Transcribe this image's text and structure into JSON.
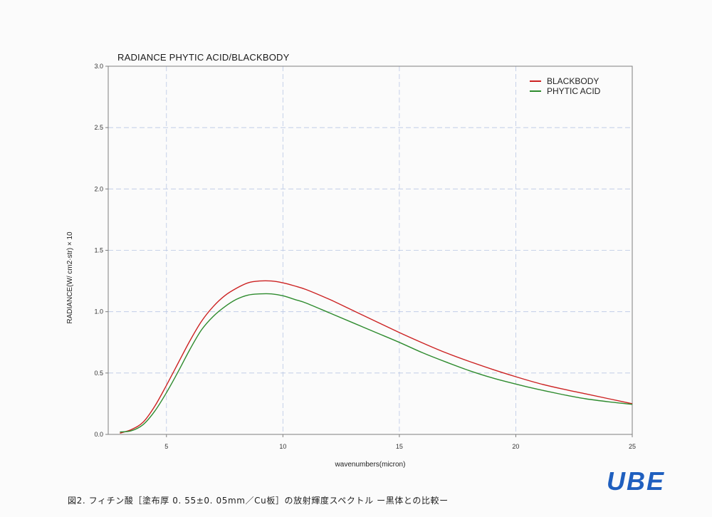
{
  "chart_data": {
    "type": "line",
    "title": "RADIANCE  PHYTIC ACID/BLACKBODY",
    "xlabel": "wavenumbers(micron)",
    "ylabel": "RADIANCE(W/ cm2·str) × 10",
    "xlim": [
      2.5,
      25
    ],
    "ylim": [
      0,
      3.0
    ],
    "xticks": [
      "5",
      "10",
      "15",
      "20",
      "25"
    ],
    "yticks": [
      "0.0",
      "0.5",
      "1.0",
      "1.5",
      "2.0",
      "2.5",
      "3.0"
    ],
    "grid": true,
    "legend_position": "top-right",
    "series": [
      {
        "name": "BLACKBODY",
        "color": "#cc2222",
        "x": [
          3.0,
          3.5,
          4.0,
          4.5,
          5.0,
          5.5,
          6.0,
          6.5,
          7.0,
          7.5,
          8.0,
          8.5,
          9.0,
          9.5,
          10.0,
          10.5,
          11.0,
          12.0,
          13.0,
          14.0,
          15.0,
          16.0,
          17.0,
          18.0,
          19.0,
          20.0,
          21.0,
          22.0,
          23.0,
          24.0,
          25.0
        ],
        "y": [
          0.01,
          0.04,
          0.1,
          0.23,
          0.4,
          0.58,
          0.76,
          0.92,
          1.04,
          1.13,
          1.19,
          1.235,
          1.25,
          1.25,
          1.235,
          1.21,
          1.18,
          1.1,
          1.01,
          0.92,
          0.83,
          0.745,
          0.665,
          0.595,
          0.53,
          0.47,
          0.415,
          0.37,
          0.33,
          0.29,
          0.25
        ]
      },
      {
        "name": "PHYTIC ACID",
        "color": "#2e8b2e",
        "x": [
          3.0,
          3.5,
          4.0,
          4.5,
          5.0,
          5.5,
          6.0,
          6.5,
          7.0,
          7.5,
          8.0,
          8.5,
          9.0,
          9.5,
          10.0,
          10.5,
          11.0,
          12.0,
          13.0,
          14.0,
          15.0,
          16.0,
          17.0,
          18.0,
          19.0,
          20.0,
          21.0,
          22.0,
          23.0,
          24.0,
          25.0
        ],
        "y": [
          0.02,
          0.03,
          0.08,
          0.19,
          0.34,
          0.51,
          0.69,
          0.85,
          0.96,
          1.04,
          1.1,
          1.135,
          1.145,
          1.145,
          1.13,
          1.1,
          1.07,
          0.99,
          0.91,
          0.83,
          0.75,
          0.665,
          0.59,
          0.52,
          0.46,
          0.41,
          0.365,
          0.325,
          0.29,
          0.265,
          0.245
        ]
      }
    ]
  },
  "caption": "図2. フィチン酸［塗布厚 0. 55±0. 05mm／Cu板］の放射輝度スペクトル ー黒体との比較ー",
  "logo": "UBE"
}
